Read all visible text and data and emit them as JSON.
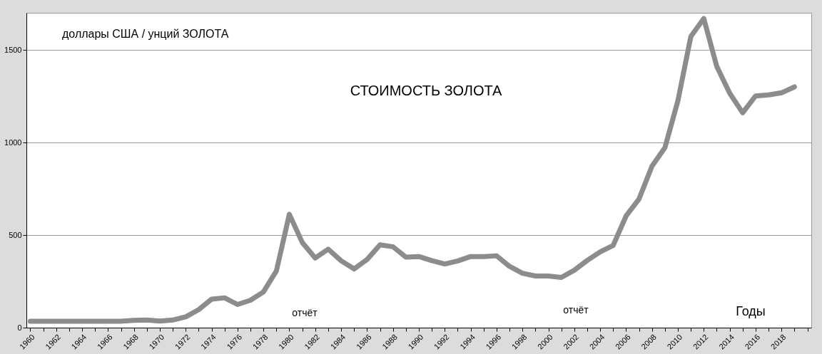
{
  "chart_data": {
    "type": "line",
    "title": "СТОИМОСТЬ ЗОЛОТА",
    "ylabel": "доллары США / унций ЗОЛОТА",
    "xlabel": "Годы",
    "categories": [
      "1960",
      null,
      "1962",
      null,
      "1964",
      null,
      "1966",
      null,
      "1968",
      null,
      "1970",
      null,
      "1972",
      null,
      "1974",
      null,
      "1976",
      null,
      "1978",
      null,
      "1980",
      null,
      "1982",
      null,
      "1984",
      null,
      "1986",
      null,
      "1988",
      null,
      "1990",
      null,
      "1992",
      null,
      "1994",
      null,
      "1996",
      null,
      "1998",
      null,
      "2000",
      null,
      "2002",
      null,
      "2004",
      null,
      "2006",
      null,
      "2008",
      null,
      "2010",
      null,
      "2012",
      null,
      "2014",
      null,
      "2016",
      null,
      "2018",
      null,
      null
    ],
    "series": [
      {
        "color": "#8c8c8c",
        "values": [
          35,
          35,
          35,
          35,
          35,
          35,
          35,
          35,
          39,
          41,
          36,
          41,
          58,
          97,
          154,
          161,
          125,
          148,
          193,
          306,
          612,
          460,
          376,
          424,
          361,
          317,
          368,
          447,
          437,
          381,
          384,
          362,
          344,
          360,
          384,
          384,
          388,
          331,
          294,
          279,
          279,
          271,
          310,
          363,
          409,
          444,
          603,
          695,
          872,
          972,
          1225,
          1572,
          1669,
          1411,
          1266,
          1160,
          1251,
          1257,
          1268,
          1300,
          null
        ]
      }
    ],
    "ylim": [
      0,
      1700
    ],
    "yticks": [
      0,
      500,
      1000,
      1500
    ],
    "grid": "y",
    "line_style": "solid",
    "annotations": [
      "отчёт",
      "отчёт"
    ]
  }
}
